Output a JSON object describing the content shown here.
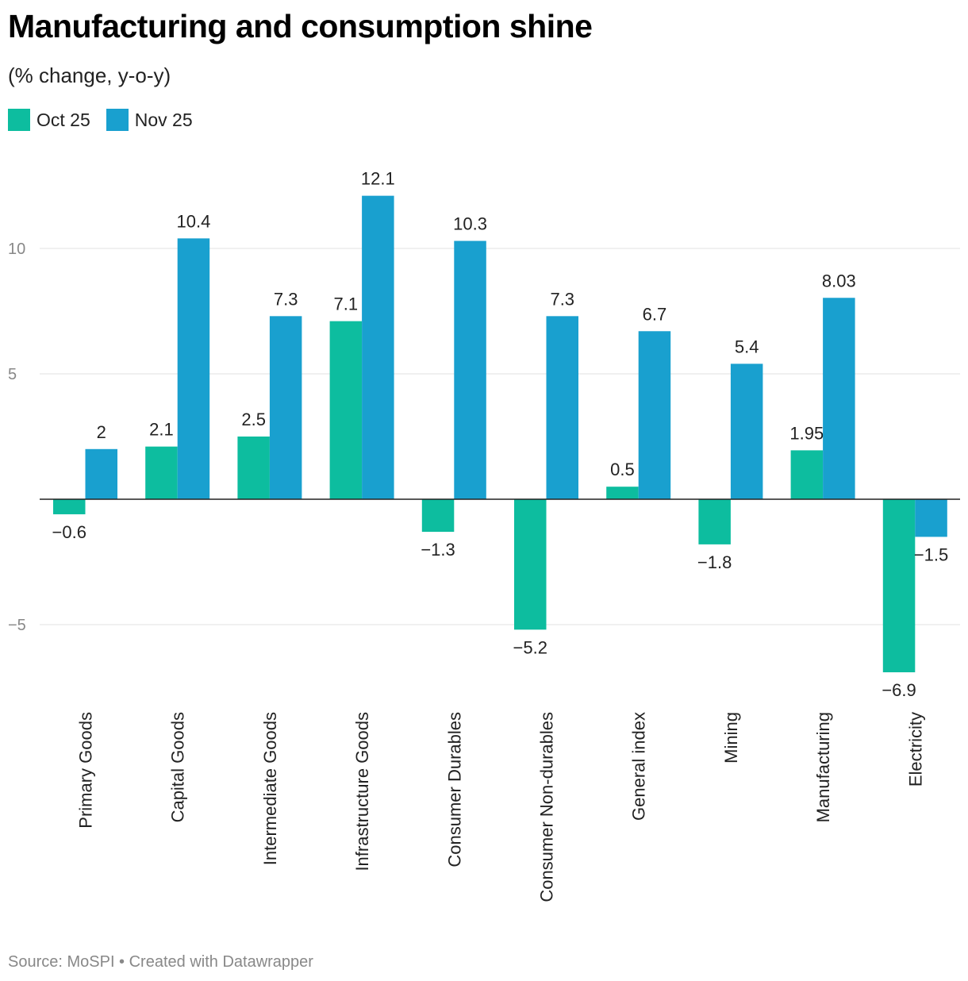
{
  "title": "Manufacturing and consumption shine",
  "subtitle": "(% change, y-o-y)",
  "source": "Source: MoSPI • Created with Datawrapper",
  "legend": [
    {
      "label": "Oct 25",
      "color": "#0dbd9f"
    },
    {
      "label": "Nov 25",
      "color": "#19a0cf"
    }
  ],
  "chart_data": {
    "type": "bar",
    "categories": [
      "Primary Goods",
      "Capital Goods",
      "Intermediate Goods",
      "Infrastructure Goods",
      "Consumer Durables",
      "Consumer Non-durables",
      "General index",
      "Mining",
      "Manufacturing",
      "Electricity"
    ],
    "series": [
      {
        "name": "Oct 25",
        "color": "#0dbd9f",
        "values": [
          -0.6,
          2.1,
          2.5,
          7.1,
          -1.3,
          -5.2,
          0.5,
          -1.8,
          1.95,
          -6.9
        ],
        "labels": [
          "−0.6",
          "2.1",
          "2.5",
          "7.1",
          "−1.3",
          "−5.2",
          "0.5",
          "−1.8",
          "1.95",
          "−6.9"
        ]
      },
      {
        "name": "Nov 25",
        "color": "#19a0cf",
        "values": [
          2,
          10.4,
          7.3,
          12.1,
          10.3,
          7.3,
          6.7,
          5.4,
          8.03,
          -1.5
        ],
        "labels": [
          "2",
          "10.4",
          "7.3",
          "12.1",
          "10.3",
          "7.3",
          "6.7",
          "5.4",
          "8.03",
          "−1.5"
        ]
      }
    ],
    "yticks": [
      10,
      5,
      0,
      -5
    ],
    "ytick_labels": [
      "10",
      "5",
      "",
      "−5"
    ],
    "ylim": [
      -8,
      13
    ],
    "grid": true,
    "legend_position": "top-left"
  }
}
